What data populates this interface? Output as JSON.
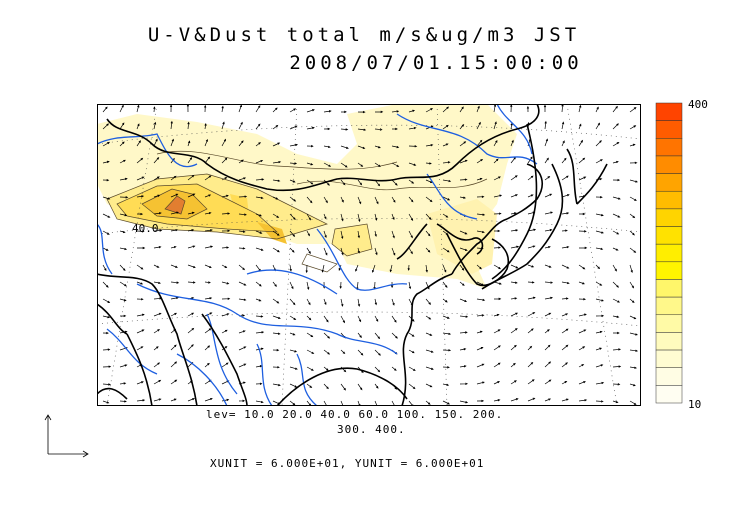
{
  "title": {
    "line1": "U-V&Dust total m/s&ug/m3 JST",
    "line2": "2008/07/01.15:00:00"
  },
  "colorbar": {
    "max_label": "400",
    "min_label": "10",
    "colors": [
      "#ff4400",
      "#ff5c00",
      "#ff7400",
      "#ff8c00",
      "#ffa400",
      "#ffbc00",
      "#ffd400",
      "#ffe200",
      "#ffee00",
      "#fff400",
      "#fff66a",
      "#fff88a",
      "#fffaa6",
      "#fffbbe",
      "#fffcd2",
      "#fffde4",
      "#fffef2"
    ]
  },
  "contour_label": "40.0",
  "levels_line1": "lev= 10.0 20.0 40.0 60.0 100. 150. 200.",
  "levels_line2": "300. 400.",
  "units_line": "XUNIT = 6.000E+01, YUNIT = 6.000E+01",
  "map_colors": {
    "coast": "#000000",
    "river": "#1e5fe0",
    "dust_light": "#fff6bf",
    "dust_mid": "#ffe882",
    "dust_high": "#f7c934",
    "dust_peak": "#e8842c"
  }
}
